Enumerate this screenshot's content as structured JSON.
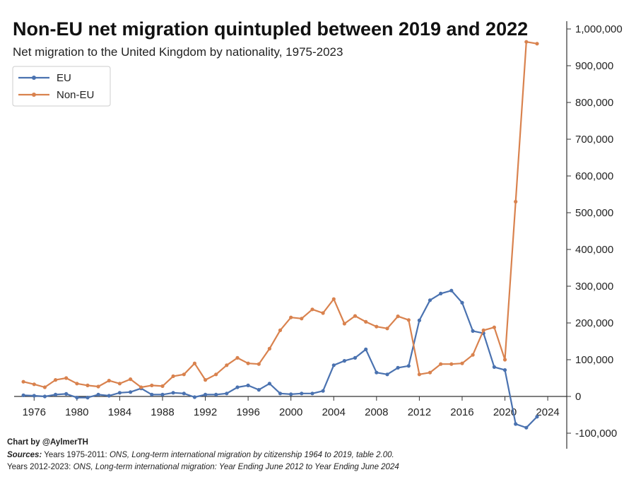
{
  "chart_data": {
    "type": "line",
    "title": "Non-EU net migration quintupled between 2019 and 2022",
    "subtitle": "Net migration to the United Kingdom by nationality, 1975-2023",
    "x_ticks": [
      1976,
      1980,
      1984,
      1988,
      1992,
      1996,
      2000,
      2004,
      2008,
      2012,
      2016,
      2020,
      2024
    ],
    "y_ticks": [
      -100000,
      0,
      100000,
      200000,
      300000,
      400000,
      500000,
      600000,
      700000,
      800000,
      900000,
      1000000
    ],
    "y_tick_labels": [
      "-100,000",
      "0",
      "100,000",
      "200,000",
      "300,000",
      "400,000",
      "500,000",
      "600,000",
      "700,000",
      "800,000",
      "900,000",
      "1,000,000"
    ],
    "xlim": [
      1974,
      2025
    ],
    "ylim": [
      -140000,
      1030000
    ],
    "y_axis_side": "right",
    "legend_position": "top-left",
    "grid": false,
    "x": [
      1975,
      1976,
      1977,
      1978,
      1979,
      1980,
      1981,
      1982,
      1983,
      1984,
      1985,
      1986,
      1987,
      1988,
      1989,
      1990,
      1991,
      1992,
      1993,
      1994,
      1995,
      1996,
      1997,
      1998,
      1999,
      2000,
      2001,
      2002,
      2003,
      2004,
      2005,
      2006,
      2007,
      2008,
      2009,
      2010,
      2011,
      2012,
      2013,
      2014,
      2015,
      2016,
      2017,
      2018,
      2019,
      2020,
      2021,
      2022,
      2023
    ],
    "series": [
      {
        "name": "EU",
        "color": "#4a72b0",
        "values": [
          3000,
          2000,
          0,
          5000,
          7000,
          -3000,
          -3000,
          5000,
          2000,
          10000,
          12000,
          22000,
          5000,
          5000,
          10000,
          8000,
          -2000,
          5000,
          5000,
          8000,
          25000,
          30000,
          18000,
          35000,
          8000,
          6000,
          8000,
          8000,
          15000,
          85000,
          97000,
          105000,
          128000,
          65000,
          60000,
          78000,
          83000,
          207000,
          262000,
          280000,
          288000,
          255000,
          178000,
          172000,
          80000,
          72000,
          -75000,
          -85000,
          -55000
        ]
      },
      {
        "name": "Non-EU",
        "color": "#d9824e",
        "values": [
          40000,
          33000,
          25000,
          45000,
          50000,
          35000,
          30000,
          27000,
          43000,
          35000,
          47000,
          25000,
          30000,
          28000,
          55000,
          60000,
          90000,
          45000,
          60000,
          85000,
          105000,
          90000,
          88000,
          130000,
          180000,
          215000,
          212000,
          237000,
          227000,
          265000,
          198000,
          219000,
          203000,
          190000,
          185000,
          218000,
          208000,
          60000,
          65000,
          88000,
          88000,
          90000,
          113000,
          180000,
          188000,
          100000,
          530000,
          965000,
          960000
        ]
      }
    ]
  },
  "footer": {
    "credit": "Chart by @AylmerTH",
    "sources_label": "Sources:",
    "line1_prefix": "Years 1975-2011:",
    "line1_ref": "ONS, Long-term international migration by citizenship 1964 to 2019, table 2.00.",
    "line2_prefix": "Years 2012-2023:",
    "line2_ref": "ONS, Long-term international migration: Year Ending June 2012 to Year Ending June 2024"
  }
}
